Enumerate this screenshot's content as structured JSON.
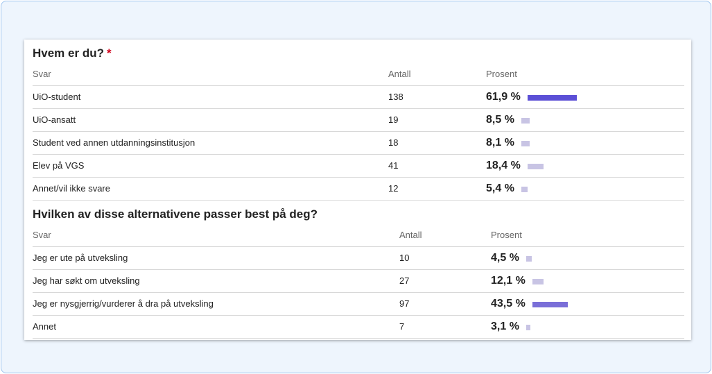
{
  "sections": [
    {
      "title": "Hvem er du?",
      "required_mark": "*",
      "headers": [
        "Svar",
        "Antall",
        "Prosent"
      ],
      "rows": [
        {
          "label": "UiO-student",
          "count": 138,
          "percent": 61.9,
          "percent_label": "61,9 %",
          "color": "#5b4fd6"
        },
        {
          "label": "UiO-ansatt",
          "count": 19,
          "percent": 8.5,
          "percent_label": "8,5 %",
          "color": "#c8c4e4"
        },
        {
          "label": "Student ved annen utdanningsinstitusjon",
          "count": 18,
          "percent": 8.1,
          "percent_label": "8,1 %",
          "color": "#c8c4e4"
        },
        {
          "label": "Elev på VGS",
          "count": 41,
          "percent": 18.4,
          "percent_label": "18,4 %",
          "color": "#c8c4e4"
        },
        {
          "label": "Annet/vil ikke svare",
          "count": 12,
          "percent": 5.4,
          "percent_label": "5,4 %",
          "color": "#c8c4e4"
        }
      ]
    },
    {
      "title": "Hvilken av disse alternativene passer best på deg?",
      "headers": [
        "Svar",
        "Antall",
        "Prosent"
      ],
      "rows": [
        {
          "label": "Jeg er ute på utveksling",
          "count": 10,
          "percent": 4.5,
          "percent_label": "4,5 %",
          "color": "#c8c4e4"
        },
        {
          "label": "Jeg har søkt om utveksling",
          "count": 27,
          "percent": 12.1,
          "percent_label": "12,1 %",
          "color": "#c8c4e4"
        },
        {
          "label": "Jeg er nysgjerrig/vurderer å dra på utveksling",
          "count": 97,
          "percent": 43.5,
          "percent_label": "43,5 %",
          "color": "#7a6fd8"
        },
        {
          "label": "Annet",
          "count": 7,
          "percent": 3.1,
          "percent_label": "3,1 %",
          "color": "#c8c4e4"
        }
      ]
    }
  ]
}
